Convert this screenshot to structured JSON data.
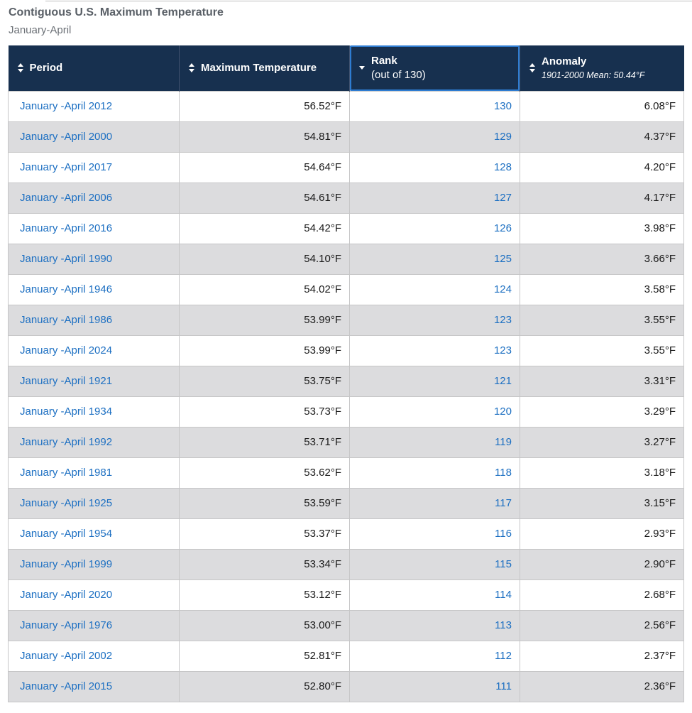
{
  "page": {
    "title": "Contiguous U.S. Maximum Temperature",
    "subtitle": "January-April"
  },
  "table": {
    "columns": [
      {
        "label": "Period",
        "sort_state": "unsorted",
        "highlighted": false
      },
      {
        "label": "Maximum Temperature",
        "sort_state": "unsorted",
        "highlighted": false
      },
      {
        "label": "Rank",
        "sublabel": "(out of 130)",
        "sort_state": "descending",
        "highlighted": true
      },
      {
        "label": "Anomaly",
        "sublabel": "1901-2000 Mean: 50.44°F",
        "sort_state": "unsorted",
        "highlighted": false
      }
    ],
    "rows": [
      {
        "period": "January -April 2012",
        "max_temp": "56.52°F",
        "rank": "130",
        "anomaly": "6.08°F"
      },
      {
        "period": "January -April 2000",
        "max_temp": "54.81°F",
        "rank": "129",
        "anomaly": "4.37°F"
      },
      {
        "period": "January -April 2017",
        "max_temp": "54.64°F",
        "rank": "128",
        "anomaly": "4.20°F"
      },
      {
        "period": "January -April 2006",
        "max_temp": "54.61°F",
        "rank": "127",
        "anomaly": "4.17°F"
      },
      {
        "period": "January -April 2016",
        "max_temp": "54.42°F",
        "rank": "126",
        "anomaly": "3.98°F"
      },
      {
        "period": "January -April 1990",
        "max_temp": "54.10°F",
        "rank": "125",
        "anomaly": "3.66°F"
      },
      {
        "period": "January -April 1946",
        "max_temp": "54.02°F",
        "rank": "124",
        "anomaly": "3.58°F"
      },
      {
        "period": "January -April 1986",
        "max_temp": "53.99°F",
        "rank": "123",
        "anomaly": "3.55°F"
      },
      {
        "period": "January -April 2024",
        "max_temp": "53.99°F",
        "rank": "123",
        "anomaly": "3.55°F"
      },
      {
        "period": "January -April 1921",
        "max_temp": "53.75°F",
        "rank": "121",
        "anomaly": "3.31°F"
      },
      {
        "period": "January -April 1934",
        "max_temp": "53.73°F",
        "rank": "120",
        "anomaly": "3.29°F"
      },
      {
        "period": "January -April 1992",
        "max_temp": "53.71°F",
        "rank": "119",
        "anomaly": "3.27°F"
      },
      {
        "period": "January -April 1981",
        "max_temp": "53.62°F",
        "rank": "118",
        "anomaly": "3.18°F"
      },
      {
        "period": "January -April 1925",
        "max_temp": "53.59°F",
        "rank": "117",
        "anomaly": "3.15°F"
      },
      {
        "period": "January -April 1954",
        "max_temp": "53.37°F",
        "rank": "116",
        "anomaly": "2.93°F"
      },
      {
        "period": "January -April 1999",
        "max_temp": "53.34°F",
        "rank": "115",
        "anomaly": "2.90°F"
      },
      {
        "period": "January -April 2020",
        "max_temp": "53.12°F",
        "rank": "114",
        "anomaly": "2.68°F"
      },
      {
        "period": "January -April 1976",
        "max_temp": "53.00°F",
        "rank": "113",
        "anomaly": "2.56°F"
      },
      {
        "period": "January -April 2002",
        "max_temp": "52.81°F",
        "rank": "112",
        "anomaly": "2.37°F"
      },
      {
        "period": "January -April 2015",
        "max_temp": "52.80°F",
        "rank": "111",
        "anomaly": "2.36°F"
      }
    ]
  },
  "colors": {
    "header_background": "#17304f",
    "row_stripe": "#dcdcde",
    "link_blue": "#1c6fc2",
    "sorted_column_outline": "#2e7cd1",
    "cell_border": "#c6c6c7",
    "title_text": "#5a6067"
  }
}
